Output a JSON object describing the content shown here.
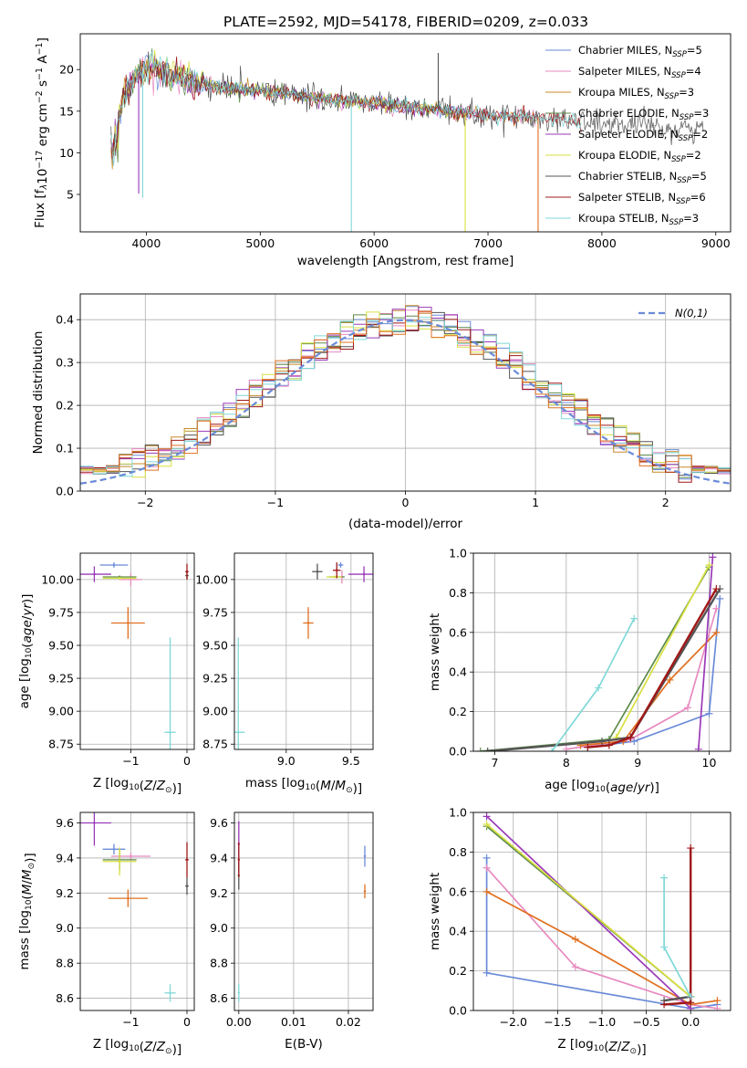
{
  "title": "PLATE=2592, MJD=54178, FIBERID=0209, z=0.033",
  "colors": {
    "Chabrier MILES": "#6a8bd8",
    "Salpeter MILES": "#e88ac0",
    "Kroupa MILES": "#c88a2a",
    "Chabrier ELODIE": "#5c8a4a",
    "Salpeter ELODIE": "#9a3ab8",
    "Kroupa ELODIE": "#d8e040",
    "Chabrier STELIB": "#555555",
    "Salpeter STELIB": "#a01818",
    "Kroupa STELIB": "#80d8d8",
    "orange": "#e07020",
    "grid": "#b0b0b0"
  },
  "legend": [
    {
      "name": "Chabrier MILES",
      "base": "Chabrier MILES, N",
      "sub": "SSP",
      "tail": "=5"
    },
    {
      "name": "Salpeter MILES",
      "base": "Salpeter MILES, N",
      "sub": "SSP",
      "tail": "=4"
    },
    {
      "name": "Kroupa MILES",
      "base": "Kroupa MILES, N",
      "sub": "SSP",
      "tail": "=3"
    },
    {
      "name": "Chabrier ELODIE",
      "base": "Chabrier ELODIE, N",
      "sub": "SSP",
      "tail": "=3"
    },
    {
      "name": "Salpeter ELODIE",
      "base": "Salpeter ELODIE, N",
      "sub": "SSP",
      "tail": "=2"
    },
    {
      "name": "Kroupa ELODIE",
      "base": "Kroupa ELODIE, N",
      "sub": "SSP",
      "tail": "=2"
    },
    {
      "name": "Chabrier STELIB",
      "base": "Chabrier STELIB, N",
      "sub": "SSP",
      "tail": "=5"
    },
    {
      "name": "Salpeter STELIB",
      "base": "Salpeter STELIB, N",
      "sub": "SSP",
      "tail": "=6"
    },
    {
      "name": "Kroupa STELIB",
      "base": "Kroupa STELIB, N",
      "sub": "SSP",
      "tail": "=3"
    }
  ],
  "gaussian_label": "N(0,1)",
  "chart_data": [
    {
      "id": "spectrum",
      "type": "line",
      "xlabel": "wavelength [Angstrom, rest frame]",
      "ylabel": "Flux [f_λ 10^-17 erg cm^-2 s^-1 A^-1]",
      "xlim": [
        3420,
        9130
      ],
      "ylim": [
        0.5,
        24.3
      ],
      "xticks": [
        4000,
        5000,
        6000,
        7000,
        8000,
        9000
      ],
      "yticks": [
        5,
        10,
        15,
        20
      ],
      "grid": false,
      "legend_position": "top-right",
      "continuum": [
        [
          3700,
          11
        ],
        [
          3800,
          17
        ],
        [
          4000,
          20.5
        ],
        [
          4300,
          19
        ],
        [
          4600,
          18
        ],
        [
          5000,
          17.5
        ],
        [
          5500,
          16.5
        ],
        [
          6000,
          16
        ],
        [
          6500,
          15.2
        ],
        [
          7000,
          14.5
        ],
        [
          7500,
          14.2
        ],
        [
          8000,
          13.5
        ],
        [
          8500,
          13
        ],
        [
          8900,
          12.8
        ]
      ],
      "features": [
        {
          "x": 3933,
          "y": 5.1
        },
        {
          "x": 3968,
          "y": 4.6
        },
        {
          "x": 5800,
          "y": 0.5
        },
        {
          "x": 6563,
          "y": 22
        },
        {
          "x": 6800,
          "y": 0.5
        },
        {
          "x": 7440,
          "y": 0.5
        }
      ]
    },
    {
      "id": "residuals",
      "type": "histogram",
      "xlabel": "(data-model)/error",
      "ylabel": "Normed distribution",
      "xlim": [
        -2.5,
        2.5
      ],
      "ylim": [
        0,
        0.46
      ],
      "xticks": [
        -2,
        -1,
        0,
        1,
        2
      ],
      "yticks": [
        0.0,
        0.1,
        0.2,
        0.3,
        0.4
      ],
      "bin_width": 0.1,
      "grid": true,
      "legend_position": "top-right",
      "reference": "standard normal N(0,1)"
    },
    {
      "id": "age-vs-Z",
      "type": "scatter",
      "xlabel": "Z [log10(Z/Z⊙)]",
      "ylabel": "age [log10(age/yr)]",
      "xlim": [
        -1.9,
        0.13
      ],
      "ylim": [
        8.71,
        10.2
      ],
      "xticks": [
        -1,
        0
      ],
      "yticks": [
        8.75,
        9.0,
        9.25,
        9.5,
        9.75,
        10.0
      ],
      "grid": true,
      "points": [
        {
          "series": "Chabrier MILES",
          "x": -1.3,
          "y": 10.11,
          "xerr": 0.25,
          "yerr": 0.02
        },
        {
          "series": "Salpeter MILES",
          "x": -1.0,
          "y": 10.0,
          "xerr": 0.2,
          "yerr": 0.05
        },
        {
          "series": "orange",
          "x": -1.05,
          "y": 9.67,
          "xerr": 0.3,
          "yerr": 0.12
        },
        {
          "series": "Chabrier ELODIE",
          "x": -1.2,
          "y": 10.02,
          "xerr": 0.3,
          "yerr": 0.01
        },
        {
          "series": "Salpeter ELODIE",
          "x": -1.65,
          "y": 10.04,
          "xerr": 0.3,
          "yerr": 0.06
        },
        {
          "series": "Kroupa ELODIE",
          "x": -1.2,
          "y": 10.01,
          "xerr": 0.3,
          "yerr": 0.01
        },
        {
          "series": "Chabrier STELIB",
          "x": 0.0,
          "y": 10.03,
          "xerr": 0.03,
          "yerr": 0.03
        },
        {
          "series": "Salpeter STELIB",
          "x": 0.0,
          "y": 10.06,
          "xerr": 0.03,
          "yerr": 0.06
        },
        {
          "series": "Kroupa STELIB",
          "x": -0.3,
          "y": 8.84,
          "xerr": 0.1,
          "yerr": 0.72
        }
      ]
    },
    {
      "id": "age-vs-mass",
      "type": "scatter",
      "xlabel": "mass [log10(M/M⊙)]",
      "ylabel": "",
      "xlim": [
        8.6,
        9.67
      ],
      "ylim": [
        8.71,
        10.2
      ],
      "xticks": [
        9.0,
        9.5
      ],
      "yticks": [
        8.75,
        9.0,
        9.25,
        9.5,
        9.75,
        10.0
      ],
      "grid": true,
      "points": [
        {
          "series": "Chabrier MILES",
          "x": 9.42,
          "y": 10.11,
          "xerr": 0.02,
          "yerr": 0.02
        },
        {
          "series": "Salpeter MILES",
          "x": 9.43,
          "y": 10.02,
          "xerr": 0.02,
          "yerr": 0.05
        },
        {
          "series": "orange",
          "x": 9.17,
          "y": 9.67,
          "xerr": 0.04,
          "yerr": 0.12
        },
        {
          "series": "Chabrier ELODIE",
          "x": 9.39,
          "y": 10.02,
          "xerr": 0.06,
          "yerr": 0.01
        },
        {
          "series": "Salpeter ELODIE",
          "x": 9.6,
          "y": 10.04,
          "xerr": 0.12,
          "yerr": 0.06
        },
        {
          "series": "Kroupa ELODIE",
          "x": 9.37,
          "y": 10.02,
          "xerr": 0.06,
          "yerr": 0.01
        },
        {
          "series": "Chabrier STELIB",
          "x": 9.24,
          "y": 10.06,
          "xerr": 0.04,
          "yerr": 0.06
        },
        {
          "series": "Salpeter STELIB",
          "x": 9.39,
          "y": 10.07,
          "xerr": 0.03,
          "yerr": 0.06
        },
        {
          "series": "Kroupa STELIB",
          "x": 8.63,
          "y": 8.84,
          "xerr": 0.05,
          "yerr": 0.72
        }
      ]
    },
    {
      "id": "weight-vs-age",
      "type": "line",
      "xlabel": "age [log10(age/yr)]",
      "ylabel": "mass weight",
      "xlim": [
        6.7,
        10.3
      ],
      "ylim": [
        0,
        1
      ],
      "xticks": [
        7,
        8,
        9,
        10
      ],
      "yticks": [
        0.0,
        0.2,
        0.4,
        0.6,
        0.8,
        1.0
      ],
      "grid": true,
      "series": [
        {
          "name": "Chabrier MILES",
          "x": [
            8.3,
            8.95,
            10.0,
            10.15
          ],
          "y": [
            0.02,
            0.05,
            0.19,
            0.77
          ]
        },
        {
          "name": "Salpeter MILES",
          "x": [
            8.0,
            8.9,
            9.7,
            10.1
          ],
          "y": [
            0.01,
            0.06,
            0.22,
            0.72
          ]
        },
        {
          "name": "orange",
          "x": [
            8.2,
            8.8,
            9.45,
            10.1
          ],
          "y": [
            0.03,
            0.05,
            0.36,
            0.6
          ]
        },
        {
          "name": "Chabrier ELODIE",
          "x": [
            6.8,
            8.6,
            10.0
          ],
          "y": [
            0.0,
            0.06,
            0.93
          ]
        },
        {
          "name": "Salpeter ELODIE",
          "x": [
            9.85,
            10.05
          ],
          "y": [
            0.01,
            0.98
          ]
        },
        {
          "name": "Kroupa ELODIE",
          "x": [
            8.7,
            10.0
          ],
          "y": [
            0.07,
            0.94
          ]
        },
        {
          "name": "Chabrier STELIB",
          "x": [
            6.9,
            8.5,
            8.9,
            10.15
          ],
          "y": [
            0.0,
            0.05,
            0.07,
            0.82
          ]
        },
        {
          "name": "Salpeter STELIB",
          "x": [
            8.3,
            8.6,
            8.9,
            10.1
          ],
          "y": [
            0.02,
            0.03,
            0.07,
            0.82
          ]
        },
        {
          "name": "Kroupa STELIB",
          "x": [
            7.8,
            8.45,
            8.95
          ],
          "y": [
            0.0,
            0.32,
            0.67
          ]
        }
      ]
    },
    {
      "id": "mass-vs-Z",
      "type": "scatter",
      "xlabel": "Z [log10(Z/Z⊙)]",
      "ylabel": "mass [log10(M/M⊙)]",
      "xlim": [
        -1.9,
        0.13
      ],
      "ylim": [
        8.53,
        9.66
      ],
      "xticks": [
        -1,
        0
      ],
      "yticks": [
        8.6,
        8.8,
        9.0,
        9.2,
        9.4,
        9.6
      ],
      "grid": true,
      "points": [
        {
          "series": "Chabrier MILES",
          "x": -1.3,
          "y": 9.45,
          "xerr": 0.2,
          "yerr": 0.03
        },
        {
          "series": "Salpeter MILES",
          "x": -1.0,
          "y": 9.41,
          "xerr": 0.35,
          "yerr": 0.02
        },
        {
          "series": "orange",
          "x": -1.05,
          "y": 9.17,
          "xerr": 0.35,
          "yerr": 0.05
        },
        {
          "series": "Chabrier ELODIE",
          "x": -1.2,
          "y": 9.39,
          "xerr": 0.3,
          "yerr": 0.06
        },
        {
          "series": "Salpeter ELODIE",
          "x": -1.65,
          "y": 9.6,
          "xerr": 0.3,
          "yerr": 0.13
        },
        {
          "series": "Kroupa ELODIE",
          "x": -1.2,
          "y": 9.38,
          "xerr": 0.3,
          "yerr": 0.08
        },
        {
          "series": "Chabrier STELIB",
          "x": 0.0,
          "y": 9.24,
          "xerr": 0.03,
          "yerr": 0.05
        },
        {
          "series": "Salpeter STELIB",
          "x": 0.0,
          "y": 9.39,
          "xerr": 0.03,
          "yerr": 0.1
        },
        {
          "series": "Kroupa STELIB",
          "x": -0.3,
          "y": 8.63,
          "xerr": 0.1,
          "yerr": 0.05
        }
      ]
    },
    {
      "id": "mass-vs-ebv",
      "type": "scatter",
      "xlabel": "E(B-V)",
      "ylabel": "",
      "xlim": [
        -0.0008,
        0.0245
      ],
      "ylim": [
        8.53,
        9.66
      ],
      "xticks": [
        0.0,
        0.01,
        0.02
      ],
      "yticks": [
        8.6,
        8.8,
        9.0,
        9.2,
        9.4,
        9.6
      ],
      "grid": true,
      "points": [
        {
          "series": "Chabrier MILES",
          "x": 0.023,
          "y": 9.41,
          "yerr": 0.06
        },
        {
          "series": "orange",
          "x": 0.023,
          "y": 9.21,
          "yerr": 0.04
        },
        {
          "series": "Salpeter ELODIE",
          "x": 0.0,
          "y": 9.48,
          "yerr": 0.13
        },
        {
          "series": "Chabrier STELIB",
          "x": 0.0,
          "y": 9.3,
          "yerr": 0.08
        },
        {
          "series": "Salpeter STELIB",
          "x": 0.0,
          "y": 9.39,
          "yerr": 0.1
        },
        {
          "series": "Kroupa STELIB",
          "x": 0.0,
          "y": 8.63,
          "yerr": 0.05
        }
      ]
    },
    {
      "id": "weight-vs-Z",
      "type": "line",
      "xlabel": "Z [log10(Z/Z⊙)]",
      "ylabel": "mass weight",
      "xlim": [
        -2.45,
        0.45
      ],
      "ylim": [
        0,
        1
      ],
      "xticks": [
        -2.0,
        -1.5,
        -1.0,
        -0.5,
        0.0
      ],
      "yticks": [
        0.0,
        0.2,
        0.4,
        0.6,
        0.8,
        1.0
      ],
      "grid": true,
      "series": [
        {
          "name": "Chabrier MILES",
          "x": [
            -2.3,
            -2.3,
            0.0,
            0.3
          ],
          "y": [
            0.77,
            0.19,
            0.01,
            0.03
          ]
        },
        {
          "name": "Salpeter MILES",
          "x": [
            -2.3,
            -1.3,
            0.0,
            0.3
          ],
          "y": [
            0.72,
            0.22,
            0.03,
            0.01
          ]
        },
        {
          "name": "orange",
          "x": [
            -2.3,
            -1.3,
            0.0,
            0.3
          ],
          "y": [
            0.6,
            0.36,
            0.03,
            0.05
          ]
        },
        {
          "name": "Chabrier ELODIE",
          "x": [
            -2.3,
            0.0
          ],
          "y": [
            0.93,
            0.07
          ]
        },
        {
          "name": "Salpeter ELODIE",
          "x": [
            -2.3,
            0.0
          ],
          "y": [
            0.98,
            0.01
          ]
        },
        {
          "name": "Kroupa ELODIE",
          "x": [
            -2.3,
            0.0
          ],
          "y": [
            0.94,
            0.07
          ]
        },
        {
          "name": "Chabrier STELIB",
          "x": [
            -0.3,
            0.0
          ],
          "y": [
            0.05,
            0.07
          ]
        },
        {
          "name": "Salpeter STELIB",
          "x": [
            -0.3,
            0.0,
            0.0
          ],
          "y": [
            0.03,
            0.04,
            0.82
          ]
        },
        {
          "name": "Kroupa STELIB",
          "x": [
            -0.3,
            -0.3,
            0.0
          ],
          "y": [
            0.67,
            0.32,
            0.07
          ]
        }
      ]
    }
  ]
}
